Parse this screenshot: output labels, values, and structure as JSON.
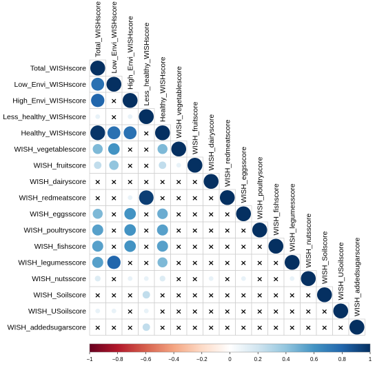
{
  "chart_data": {
    "type": "heatmap",
    "subtype": "correlation-matrix-lower-triangle-circles",
    "variables": [
      "Total_WISHscore",
      "Low_Envi_WISHscore",
      "High_Envi_WISHscore",
      "Less_healthy_WISHscore",
      "Healthy_WISHscore",
      "WISH_vegetablescore",
      "WISH_fruitscore",
      "WISH_dairyscore",
      "WISH_redmeatscore",
      "WISH_eggsscore",
      "WISH_poultryscore",
      "WISH_fishscore",
      "WISH_legumesscore",
      "WISH_nutsscore",
      "WISH_Soilscore",
      "WISH_USoilscore",
      "WISH_addedsugarscore"
    ],
    "matrix": [
      [
        1
      ],
      [
        0.75,
        1
      ],
      [
        0.8,
        null,
        1
      ],
      [
        0.1,
        null,
        0.1,
        1
      ],
      [
        0.98,
        0.75,
        0.75,
        null,
        1
      ],
      [
        0.45,
        0.6,
        null,
        null,
        0.45,
        1
      ],
      [
        0.25,
        0.4,
        null,
        null,
        0.25,
        0.1,
        1
      ],
      [
        null,
        null,
        null,
        null,
        null,
        null,
        null,
        1
      ],
      [
        null,
        null,
        0.1,
        0.95,
        null,
        null,
        null,
        null,
        1
      ],
      [
        0.45,
        null,
        0.6,
        null,
        0.5,
        null,
        null,
        null,
        null,
        1
      ],
      [
        0.55,
        null,
        0.6,
        null,
        0.55,
        null,
        null,
        null,
        null,
        null,
        1
      ],
      [
        0.55,
        null,
        0.6,
        null,
        0.55,
        null,
        null,
        null,
        null,
        null,
        null,
        1
      ],
      [
        0.55,
        0.8,
        null,
        null,
        0.45,
        null,
        null,
        null,
        null,
        null,
        null,
        null,
        1
      ],
      [
        0.15,
        null,
        0.1,
        0.1,
        0.15,
        null,
        null,
        0.1,
        null,
        0.1,
        null,
        null,
        0.1,
        1
      ],
      [
        null,
        null,
        null,
        0.25,
        null,
        null,
        null,
        null,
        null,
        null,
        null,
        null,
        null,
        null,
        1
      ],
      [
        0.1,
        0.1,
        null,
        0.1,
        null,
        null,
        null,
        null,
        null,
        null,
        null,
        null,
        null,
        null,
        null,
        1
      ],
      [
        null,
        null,
        null,
        0.25,
        null,
        null,
        null,
        null,
        null,
        null,
        null,
        null,
        null,
        null,
        null,
        null,
        1
      ]
    ],
    "color_scale": {
      "range": [
        -1,
        1
      ],
      "ticks": [
        -1,
        -0.8,
        -0.6,
        -0.4,
        -0.2,
        0,
        0.2,
        0.4,
        0.6,
        0.8,
        1
      ],
      "tick_labels": [
        "−1",
        "−0.8",
        "−0.6",
        "−0.4",
        "−0.2",
        "0",
        "0.2",
        "0.4",
        "0.6",
        "0.8",
        "1"
      ],
      "colors": [
        "#67001f",
        "#b2182b",
        "#d6604d",
        "#f4a582",
        "#fddbc7",
        "#ffffff",
        "#d1e5f0",
        "#92c5de",
        "#4393c3",
        "#2166ac",
        "#053061"
      ],
      "placement": "bottom"
    },
    "nonsignificant_marker": "×"
  }
}
